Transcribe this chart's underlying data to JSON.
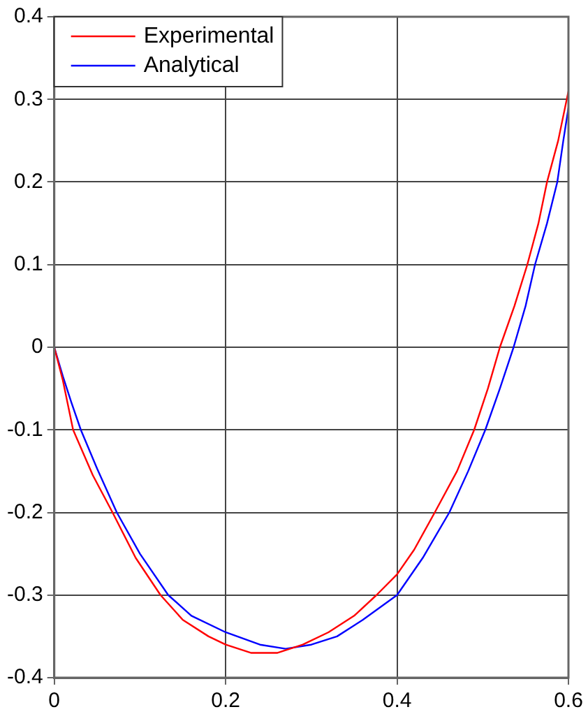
{
  "chart_data": {
    "type": "line",
    "xlim": [
      0,
      0.6
    ],
    "xticks": [
      0,
      0.2,
      0.4,
      0.6
    ],
    "ylim": [
      -0.4,
      0.4
    ],
    "yticks": [
      -0.4,
      -0.3,
      -0.2,
      -0.1,
      0,
      0.1,
      0.2,
      0.3,
      0.4
    ],
    "grid": true,
    "legend": "top left",
    "marker": "none",
    "line_style": "solid",
    "series": [
      {
        "name": "Experimental",
        "color": "#ff0000",
        "x": [
          0,
          0.01,
          0.022,
          0.045,
          0.068,
          0.095,
          0.124,
          0.15,
          0.18,
          0.2,
          0.23,
          0.26,
          0.29,
          0.32,
          0.35,
          0.376,
          0.4,
          0.42,
          0.444,
          0.47,
          0.49,
          0.506,
          0.52,
          0.537,
          0.552,
          0.565,
          0.575,
          0.588,
          0.6
        ],
        "values": [
          0,
          -0.04,
          -0.1,
          -0.155,
          -0.2,
          -0.255,
          -0.3,
          -0.33,
          -0.35,
          -0.36,
          -0.37,
          -0.37,
          -0.36,
          -0.345,
          -0.325,
          -0.3,
          -0.275,
          -0.245,
          -0.2,
          -0.15,
          -0.1,
          -0.05,
          0,
          0.05,
          0.1,
          0.15,
          0.2,
          0.25,
          0.31
        ]
      },
      {
        "name": "Analytical",
        "color": "#0000ff",
        "x": [
          0,
          0.01,
          0.02,
          0.031,
          0.05,
          0.073,
          0.1,
          0.133,
          0.16,
          0.2,
          0.24,
          0.27,
          0.3,
          0.33,
          0.36,
          0.4,
          0.43,
          0.461,
          0.483,
          0.503,
          0.52,
          0.536,
          0.55,
          0.561,
          0.575,
          0.587,
          0.594,
          0.6
        ],
        "values": [
          0,
          -0.035,
          -0.067,
          -0.1,
          -0.147,
          -0.2,
          -0.25,
          -0.3,
          -0.325,
          -0.345,
          -0.36,
          -0.365,
          -0.36,
          -0.35,
          -0.33,
          -0.3,
          -0.255,
          -0.2,
          -0.15,
          -0.1,
          -0.05,
          0,
          0.05,
          0.1,
          0.15,
          0.2,
          0.25,
          0.29
        ]
      }
    ]
  }
}
